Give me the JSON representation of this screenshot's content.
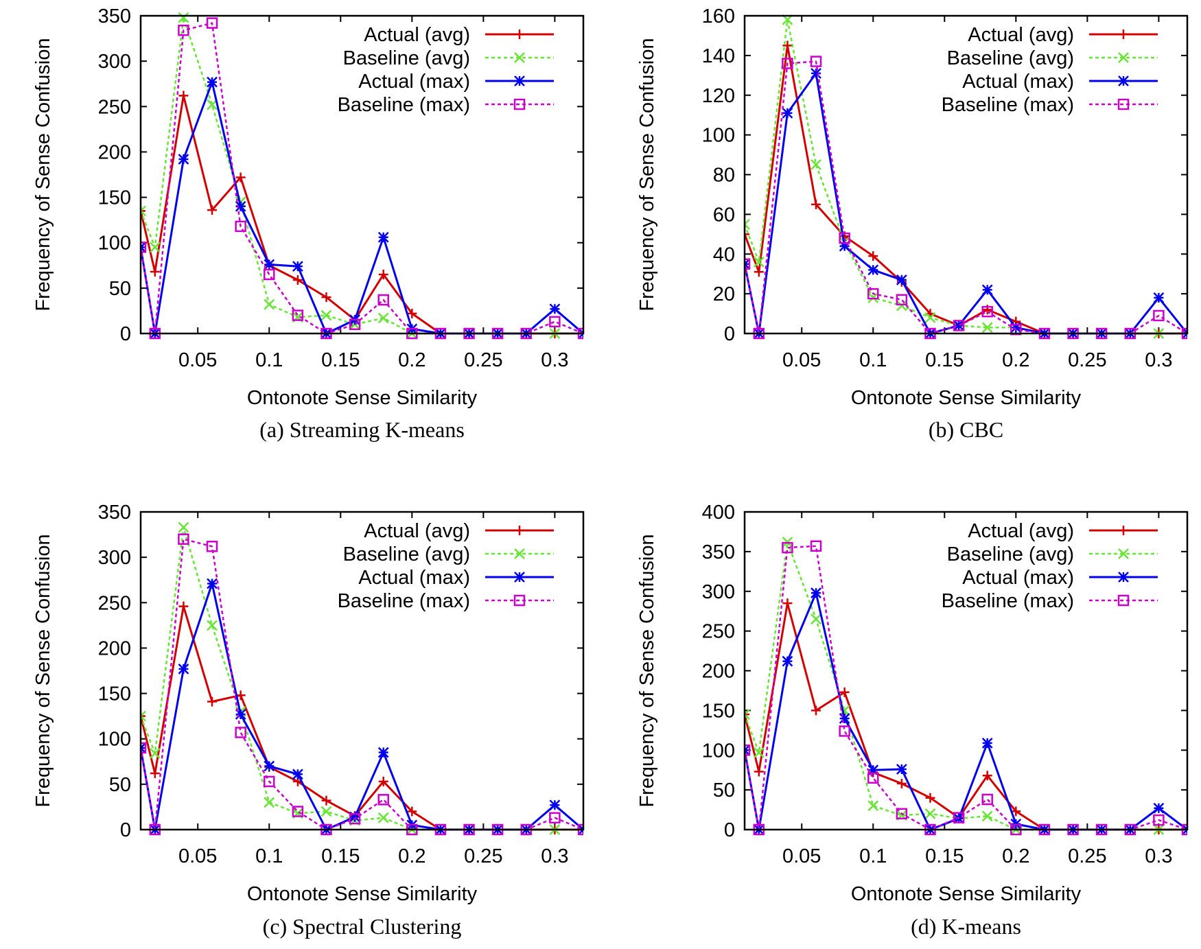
{
  "figure": {
    "colors": {
      "Actual (avg)": "#d40000",
      "Baseline (avg)": "#66e633",
      "Actual (max)": "#0000ee",
      "Baseline (max)": "#cc00cc"
    },
    "markers": {
      "Actual (avg)": "plus",
      "Baseline (avg)": "cross",
      "Actual (max)": "star",
      "Baseline (max)": "square"
    },
    "dashed": {
      "Actual (avg)": false,
      "Baseline (avg)": true,
      "Actual (max)": false,
      "Baseline (max)": true
    }
  },
  "chart_data": [
    {
      "type": "line",
      "caption": "(a) Streaming K-means",
      "xlabel": "Ontonote Sense Similarity",
      "ylabel": "Frequency of Sense Confusion",
      "xlim": [
        0.01,
        0.32
      ],
      "ylim": [
        0,
        350
      ],
      "xticks": [
        0.05,
        0.1,
        0.15,
        0.2,
        0.25,
        0.3
      ],
      "xtick_labels": [
        "0.05",
        "0.1",
        "0.15",
        "0.2",
        "0.25",
        "0.3"
      ],
      "yticks": [
        0,
        50,
        100,
        150,
        200,
        250,
        300,
        350
      ],
      "ytick_labels": [
        "0",
        "50",
        "100",
        "150",
        "200",
        "250",
        "300",
        "350"
      ],
      "legend_position": "top-right",
      "x": [
        0.01,
        0.02,
        0.04,
        0.06,
        0.08,
        0.1,
        0.12,
        0.14,
        0.16,
        0.18,
        0.2,
        0.22,
        0.24,
        0.26,
        0.28,
        0.3,
        0.32
      ],
      "series": [
        {
          "name": "Actual (avg)",
          "values": [
            135,
            68,
            262,
            136,
            172,
            75,
            59,
            40,
            15,
            65,
            22,
            0,
            0,
            0,
            0,
            0,
            0
          ]
        },
        {
          "name": "Baseline (avg)",
          "values": [
            135,
            95,
            348,
            252,
            145,
            32,
            18,
            20,
            10,
            17,
            0,
            0,
            0,
            0,
            0,
            0,
            0
          ]
        },
        {
          "name": "Actual (max)",
          "values": [
            95,
            0,
            192,
            277,
            140,
            76,
            74,
            0,
            15,
            106,
            5,
            0,
            0,
            0,
            0,
            27,
            0
          ]
        },
        {
          "name": "Baseline (max)",
          "values": [
            95,
            0,
            334,
            342,
            118,
            65,
            20,
            0,
            10,
            37,
            0,
            0,
            0,
            0,
            0,
            13,
            0
          ]
        }
      ]
    },
    {
      "type": "line",
      "caption": "(b) CBC",
      "xlabel": "Ontonote Sense Similarity",
      "ylabel": "Frequency of Sense Confusion",
      "xlim": [
        0.01,
        0.32
      ],
      "ylim": [
        0,
        160
      ],
      "xticks": [
        0.05,
        0.1,
        0.15,
        0.2,
        0.25,
        0.3
      ],
      "xtick_labels": [
        "0.05",
        "0.1",
        "0.15",
        "0.2",
        "0.25",
        "0.3"
      ],
      "yticks": [
        0,
        20,
        40,
        60,
        80,
        100,
        120,
        140,
        160
      ],
      "ytick_labels": [
        "0",
        "20",
        "40",
        "60",
        "80",
        "100",
        "120",
        "140",
        "160"
      ],
      "legend_position": "top-right",
      "x": [
        0.01,
        0.02,
        0.04,
        0.06,
        0.08,
        0.1,
        0.12,
        0.14,
        0.16,
        0.18,
        0.2,
        0.22,
        0.24,
        0.26,
        0.28,
        0.3,
        0.32
      ],
      "series": [
        {
          "name": "Actual (avg)",
          "values": [
            50,
            31,
            145,
            65,
            49,
            39,
            26,
            10,
            4,
            12,
            6,
            0,
            0,
            0,
            0,
            0,
            0
          ]
        },
        {
          "name": "Baseline (avg)",
          "values": [
            55,
            36,
            158,
            85,
            46,
            18,
            14,
            8,
            4,
            3,
            3,
            0,
            0,
            0,
            0,
            0,
            0
          ]
        },
        {
          "name": "Actual (max)",
          "values": [
            35,
            0,
            111,
            131,
            44,
            32,
            27,
            0,
            4,
            22,
            3,
            0,
            0,
            0,
            0,
            18,
            0
          ]
        },
        {
          "name": "Baseline (max)",
          "values": [
            35,
            0,
            136,
            137,
            48,
            20,
            17,
            0,
            4,
            11,
            2,
            0,
            0,
            0,
            0,
            9,
            0
          ]
        }
      ]
    },
    {
      "type": "line",
      "caption": "(c) Spectral Clustering",
      "xlabel": "Ontonote Sense Similarity",
      "ylabel": "Frequency of Sense Confusion",
      "xlim": [
        0.01,
        0.32
      ],
      "ylim": [
        0,
        350
      ],
      "xticks": [
        0.05,
        0.1,
        0.15,
        0.2,
        0.25,
        0.3
      ],
      "xtick_labels": [
        "0.05",
        "0.1",
        "0.15",
        "0.2",
        "0.25",
        "0.3"
      ],
      "yticks": [
        0,
        50,
        100,
        150,
        200,
        250,
        300,
        350
      ],
      "ytick_labels": [
        "0",
        "50",
        "100",
        "150",
        "200",
        "250",
        "300",
        "350"
      ],
      "legend_position": "top-right",
      "x": [
        0.01,
        0.02,
        0.04,
        0.06,
        0.08,
        0.1,
        0.12,
        0.14,
        0.16,
        0.18,
        0.2,
        0.22,
        0.24,
        0.26,
        0.28,
        0.3,
        0.32
      ],
      "series": [
        {
          "name": "Actual (avg)",
          "values": [
            125,
            62,
            246,
            141,
            148,
            69,
            53,
            32,
            15,
            53,
            20,
            0,
            0,
            0,
            0,
            0,
            0
          ]
        },
        {
          "name": "Baseline (avg)",
          "values": [
            125,
            84,
            333,
            225,
            130,
            30,
            18,
            20,
            10,
            13,
            0,
            0,
            0,
            0,
            0,
            0,
            0
          ]
        },
        {
          "name": "Actual (max)",
          "values": [
            90,
            0,
            177,
            271,
            127,
            70,
            61,
            0,
            14,
            85,
            5,
            0,
            0,
            0,
            0,
            27,
            0
          ]
        },
        {
          "name": "Baseline (max)",
          "values": [
            90,
            0,
            320,
            312,
            107,
            53,
            20,
            0,
            12,
            33,
            0,
            0,
            0,
            0,
            0,
            13,
            0
          ]
        }
      ]
    },
    {
      "type": "line",
      "caption": "(d) K-means",
      "xlabel": "Ontonote Sense Similarity",
      "ylabel": "Frequency of Sense Confusion",
      "xlim": [
        0.01,
        0.32
      ],
      "ylim": [
        0,
        400
      ],
      "xticks": [
        0.05,
        0.1,
        0.15,
        0.2,
        0.25,
        0.3
      ],
      "xtick_labels": [
        "0.05",
        "0.1",
        "0.15",
        "0.2",
        "0.25",
        "0.3"
      ],
      "yticks": [
        0,
        50,
        100,
        150,
        200,
        250,
        300,
        350,
        400
      ],
      "ytick_labels": [
        "0",
        "50",
        "100",
        "150",
        "200",
        "250",
        "300",
        "350",
        "400"
      ],
      "legend_position": "top-right",
      "x": [
        0.01,
        0.02,
        0.04,
        0.06,
        0.08,
        0.1,
        0.12,
        0.14,
        0.16,
        0.18,
        0.2,
        0.22,
        0.24,
        0.26,
        0.28,
        0.3,
        0.32
      ],
      "series": [
        {
          "name": "Actual (avg)",
          "values": [
            145,
            73,
            285,
            150,
            173,
            72,
            58,
            40,
            15,
            68,
            23,
            0,
            0,
            0,
            0,
            0,
            0
          ]
        },
        {
          "name": "Baseline (avg)",
          "values": [
            145,
            97,
            362,
            265,
            150,
            30,
            18,
            20,
            14,
            17,
            0,
            0,
            0,
            0,
            0,
            0,
            0
          ]
        },
        {
          "name": "Actual (max)",
          "values": [
            100,
            0,
            212,
            298,
            140,
            75,
            76,
            0,
            14,
            109,
            7,
            0,
            0,
            0,
            0,
            27,
            0
          ]
        },
        {
          "name": "Baseline (max)",
          "values": [
            100,
            0,
            355,
            357,
            124,
            65,
            20,
            0,
            15,
            38,
            0,
            0,
            0,
            0,
            0,
            12,
            0
          ]
        }
      ]
    }
  ]
}
